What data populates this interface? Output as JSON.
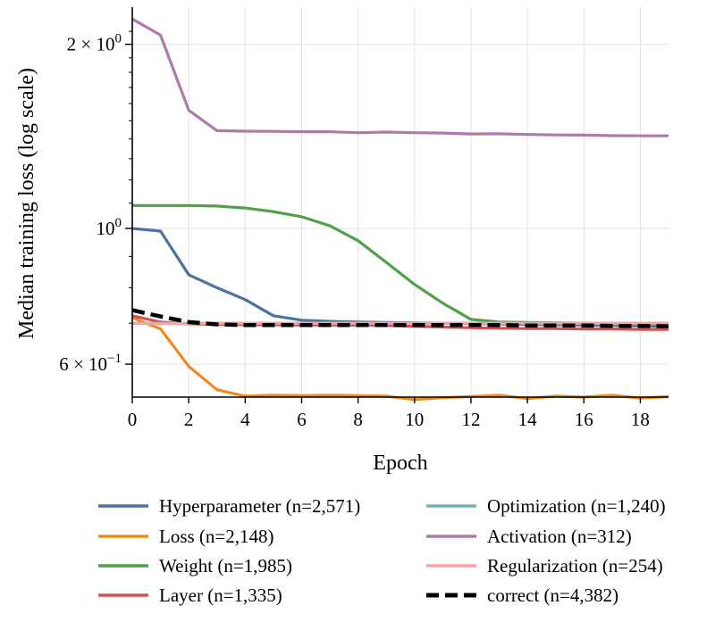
{
  "chart_data": {
    "type": "line",
    "xlabel": "Epoch",
    "ylabel": "Median training loss (log scale)",
    "yscale": "log",
    "xlim": [
      0,
      19
    ],
    "ylim": [
      0.53,
      2.3
    ],
    "xticks": [
      0,
      2,
      4,
      6,
      8,
      10,
      12,
      14,
      16,
      18
    ],
    "yticks": [
      {
        "value": 2.0,
        "base": "2 × 10",
        "exp": "0"
      },
      {
        "value": 1.0,
        "base": "10",
        "exp": "0"
      },
      {
        "value": 0.6,
        "base": "6 × 10",
        "exp": "−1"
      }
    ],
    "grid": "vertical",
    "legend_position": "bottom",
    "x": [
      0,
      1,
      2,
      3,
      4,
      5,
      6,
      7,
      8,
      9,
      10,
      11,
      12,
      13,
      14,
      15,
      16,
      17,
      18,
      19
    ],
    "series": [
      {
        "name": "Hyperparameter (n=2,571)",
        "color": "#4c72a0",
        "dash": "solid",
        "values": [
          1.0,
          0.99,
          0.84,
          0.8,
          0.765,
          0.72,
          0.708,
          0.705,
          0.703,
          0.702,
          0.701,
          0.7,
          0.699,
          0.698,
          0.697,
          0.696,
          0.695,
          0.694,
          0.693,
          0.692
        ]
      },
      {
        "name": "Loss (n=2,148)",
        "color": "#ef8a20",
        "dash": "solid",
        "values": [
          0.715,
          0.685,
          0.595,
          0.545,
          0.532,
          0.534,
          0.533,
          0.534,
          0.533,
          0.532,
          0.525,
          0.529,
          0.531,
          0.534,
          0.527,
          0.532,
          0.53,
          0.534,
          0.528,
          0.531
        ]
      },
      {
        "name": "Weight (n=1,985)",
        "color": "#4ea04a",
        "dash": "solid",
        "values": [
          1.09,
          1.09,
          1.09,
          1.088,
          1.08,
          1.065,
          1.045,
          1.01,
          0.955,
          0.88,
          0.81,
          0.755,
          0.71,
          0.703,
          0.702,
          0.701,
          0.7,
          0.699,
          0.698,
          0.697
        ]
      },
      {
        "name": "Layer (n=1,335)",
        "color": "#d65252",
        "dash": "solid",
        "values": [
          0.72,
          0.703,
          0.698,
          0.697,
          0.696,
          0.696,
          0.695,
          0.695,
          0.695,
          0.694,
          0.692,
          0.69,
          0.688,
          0.687,
          0.686,
          0.686,
          0.685,
          0.685,
          0.684,
          0.684
        ]
      },
      {
        "name": "Optimization (n=1,240)",
        "color": "#72b3b1",
        "dash": "solid",
        "values": [
          0.7,
          0.7,
          0.7,
          0.7,
          0.7,
          0.7,
          0.7,
          0.7,
          0.7,
          0.7,
          0.7,
          0.7,
          0.7,
          0.7,
          0.7,
          0.7,
          0.7,
          0.7,
          0.7,
          0.7
        ]
      },
      {
        "name": "Activation (n=312)",
        "color": "#b07aa8",
        "dash": "solid",
        "values": [
          2.2,
          2.07,
          1.56,
          1.445,
          1.442,
          1.441,
          1.439,
          1.439,
          1.434,
          1.437,
          1.434,
          1.432,
          1.427,
          1.428,
          1.424,
          1.422,
          1.421,
          1.418,
          1.417,
          1.417
        ]
      },
      {
        "name": "Regularization (n=254)",
        "color": "#f7a0a8",
        "dash": "solid",
        "values": [
          0.7,
          0.699,
          0.699,
          0.7,
          0.7,
          0.7,
          0.7,
          0.7,
          0.7,
          0.7,
          0.7,
          0.7,
          0.7,
          0.7,
          0.7,
          0.7,
          0.7,
          0.7,
          0.7,
          0.7
        ]
      },
      {
        "name": "correct (n=4,382)",
        "color": "#000000",
        "dash": "dashed",
        "values": [
          0.735,
          0.718,
          0.703,
          0.697,
          0.695,
          0.695,
          0.695,
          0.695,
          0.695,
          0.695,
          0.695,
          0.695,
          0.695,
          0.695,
          0.694,
          0.694,
          0.694,
          0.693,
          0.693,
          0.692
        ]
      }
    ]
  }
}
